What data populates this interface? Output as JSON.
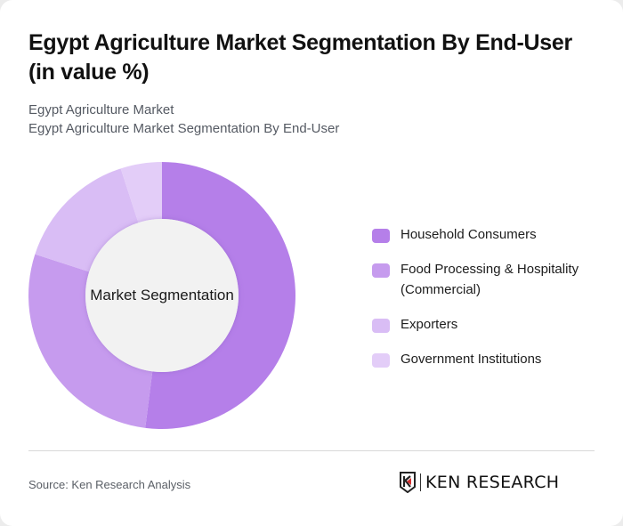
{
  "header": {
    "title": "Egypt Agriculture Market Segmentation By End-User (in value %)",
    "breadcrumb_line1": "Egypt Agriculture Market",
    "breadcrumb_line2": "Egypt Agriculture Market Segmentation By End-User"
  },
  "chart": {
    "center_label": "Market Segmentation"
  },
  "legend": [
    {
      "label": "Household Consumers",
      "color": "#b57fe9"
    },
    {
      "label": "Food Processing & Hospitality (Commercial)",
      "color": "#c69bee"
    },
    {
      "label": "Exporters",
      "color": "#d9bdf5"
    },
    {
      "label": "Government Institutions",
      "color": "#e3cdf8"
    }
  ],
  "footer": {
    "source": "Source: Ken Research Analysis",
    "logo_text": "KEN RESEARCH"
  },
  "chart_data": {
    "type": "pie",
    "variant": "donut",
    "title": "Egypt Agriculture Market Segmentation By End-User (in value %)",
    "center_label": "Market Segmentation",
    "categories": [
      "Household Consumers",
      "Food Processing & Hospitality (Commercial)",
      "Exporters",
      "Government Institutions"
    ],
    "values": [
      52,
      28,
      15,
      5
    ],
    "unit": "%",
    "colors": [
      "#b57fe9",
      "#c69bee",
      "#d9bdf5",
      "#e3cdf8"
    ],
    "legend_position": "right",
    "start_angle": "top, clockwise"
  }
}
